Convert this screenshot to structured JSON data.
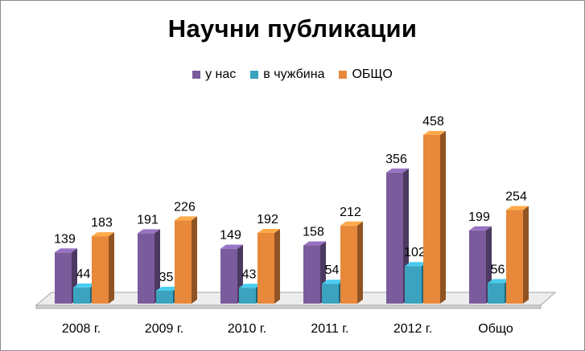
{
  "chart_data": {
    "type": "bar",
    "title": "Научни публикации",
    "categories": [
      "2008 г.",
      "2009 г.",
      "2010 г.",
      "2011 г.",
      "2012 г.",
      "Общо"
    ],
    "series": [
      {
        "name": "у нас",
        "values": [
          139,
          191,
          149,
          158,
          356,
          199
        ],
        "color": "#7a5c9c"
      },
      {
        "name": "в чужбина",
        "values": [
          44,
          35,
          43,
          54,
          102,
          56
        ],
        "color": "#3ba3bf"
      },
      {
        "name": "ОБЩО",
        "values": [
          183,
          226,
          192,
          212,
          458,
          254
        ],
        "color": "#e8883a"
      }
    ],
    "legend_position": "top",
    "grid": false,
    "ylim": [
      0,
      458
    ]
  }
}
